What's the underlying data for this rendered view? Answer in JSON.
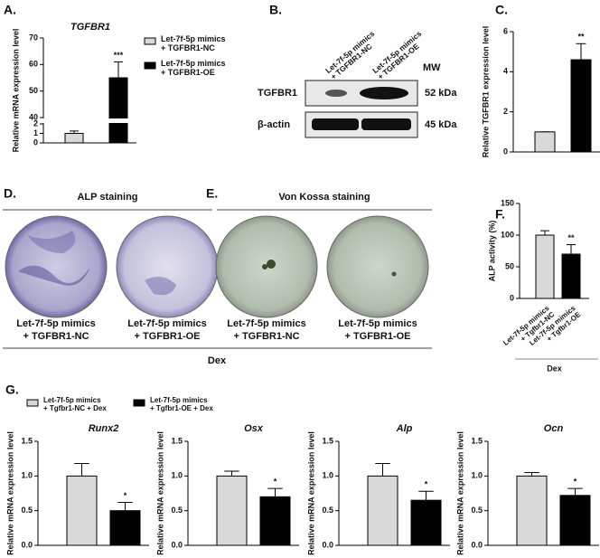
{
  "chart_data": [
    {
      "type": "bar",
      "panel_label": "A.",
      "title": "TGFBR1",
      "ylabel": "Relative mRNA expression level",
      "values": [
        1,
        55
      ],
      "errors": [
        0.25,
        6
      ],
      "colors": [
        "#d9d9d9",
        "#000000"
      ],
      "ylim": [
        0,
        70
      ],
      "yticks": [
        0,
        1,
        2,
        40,
        50,
        60,
        70
      ],
      "axis_break": [
        2,
        40
      ],
      "annotations": [
        {
          "bar": 1,
          "text": "***"
        }
      ],
      "legend": [
        {
          "lines": [
            "Let-7f-5p mimics",
            "+ TGFBR1-NC"
          ],
          "color": "#d9d9d9"
        },
        {
          "lines": [
            "Let-7f-5p mimics",
            "+ TGFBR1-OE"
          ],
          "color": "#000000"
        }
      ]
    },
    {
      "type": "bar",
      "panel_label": "C.",
      "ylabel": "Relative TGFBR1 expression level",
      "values": [
        1,
        4.6
      ],
      "errors": [
        0,
        0.8
      ],
      "colors": [
        "#d9d9d9",
        "#000000"
      ],
      "ylim": [
        0,
        6
      ],
      "yticks": [
        0,
        2,
        4,
        6
      ],
      "annotations": [
        {
          "bar": 1,
          "text": "**"
        }
      ]
    },
    {
      "type": "bar",
      "panel_label": "F.",
      "ylabel": "ALP activity (%)",
      "categories": [
        [
          "Let-7f-5p mimics",
          "+ Tgfbr1-NC"
        ],
        [
          "Let-7f-5p mimics",
          "+ Tgfbr1-OE"
        ]
      ],
      "group_label": "Dex",
      "values": [
        100,
        70
      ],
      "errors": [
        7,
        15
      ],
      "colors": [
        "#d9d9d9",
        "#000000"
      ],
      "ylim": [
        0,
        150
      ],
      "yticks": [
        0,
        50,
        100,
        150
      ],
      "annotations": [
        {
          "bar": 1,
          "text": "**"
        }
      ]
    },
    {
      "type": "bar",
      "title": "Runx2",
      "ylabel": "Relative mRNA expression level",
      "values": [
        1.0,
        0.5
      ],
      "errors": [
        0.18,
        0.12
      ],
      "colors": [
        "#d9d9d9",
        "#000000"
      ],
      "ylim": [
        0,
        1.5
      ],
      "yticks": [
        {
          "value": 0,
          "label": "0.0"
        },
        {
          "value": 0.5,
          "label": "0.5"
        },
        {
          "value": 1,
          "label": "1.0"
        },
        {
          "value": 1.5,
          "label": "1.5"
        }
      ],
      "annotations": [
        {
          "bar": 1,
          "text": "*"
        }
      ]
    },
    {
      "type": "bar",
      "title": "Osx",
      "ylabel": "Relative mRNA expression level",
      "values": [
        1.0,
        0.7
      ],
      "errors": [
        0.07,
        0.12
      ],
      "colors": [
        "#d9d9d9",
        "#000000"
      ],
      "ylim": [
        0,
        1.5
      ],
      "yticks": [
        {
          "value": 0,
          "label": "0.0"
        },
        {
          "value": 0.5,
          "label": "0.5"
        },
        {
          "value": 1,
          "label": "1.0"
        },
        {
          "value": 1.5,
          "label": "1.5"
        }
      ],
      "annotations": [
        {
          "bar": 1,
          "text": "*"
        }
      ]
    },
    {
      "type": "bar",
      "title": "Alp",
      "ylabel": "Relative mRNA expression level",
      "values": [
        1.0,
        0.65
      ],
      "errors": [
        0.18,
        0.13
      ],
      "colors": [
        "#d9d9d9",
        "#000000"
      ],
      "ylim": [
        0,
        1.5
      ],
      "yticks": [
        {
          "value": 0,
          "label": "0.0"
        },
        {
          "value": 0.5,
          "label": "0.5"
        },
        {
          "value": 1,
          "label": "1.0"
        },
        {
          "value": 1.5,
          "label": "1.5"
        }
      ],
      "annotations": [
        {
          "bar": 1,
          "text": "*"
        }
      ]
    },
    {
      "type": "bar",
      "title": "Ocn",
      "ylabel": "Relative mRNA expression level",
      "values": [
        1.0,
        0.72
      ],
      "errors": [
        0.05,
        0.1
      ],
      "colors": [
        "#d9d9d9",
        "#000000"
      ],
      "ylim": [
        0,
        1.5
      ],
      "yticks": [
        {
          "value": 0,
          "label": "0.0"
        },
        {
          "value": 0.5,
          "label": "0.5"
        },
        {
          "value": 1,
          "label": "1.0"
        },
        {
          "value": 1.5,
          "label": "1.5"
        }
      ],
      "annotations": [
        {
          "bar": 1,
          "text": "*"
        }
      ]
    }
  ],
  "panel_g": {
    "panel_label": "G.",
    "legend": [
      {
        "lines": [
          "Let-7f-5p mimics",
          "+ Tgfbr1-NC + Dex"
        ],
        "color": "#d9d9d9"
      },
      {
        "lines": [
          "Let-7f-5p mimics",
          "+ Tgfbr1-OE + Dex"
        ],
        "color": "#000000"
      }
    ]
  },
  "blot": {
    "panel_label": "B.",
    "lanes": [
      [
        "Let-7f-5p mimics",
        "+ TGFBR1-NC"
      ],
      [
        "Let-7f-5p mimics",
        "+ TGFBR1-OE"
      ]
    ],
    "mw_header": "MW",
    "rows": [
      {
        "protein": "TGFBR1",
        "mw": "52 kDa"
      },
      {
        "protein": "β-actin",
        "mw": "45 kDa"
      }
    ]
  },
  "staining": {
    "panels": [
      {
        "panel_label": "D.",
        "title": "ALP staining",
        "wells": [
          [
            "Let-7f-5p mimics",
            "+ TGFBR1-NC"
          ],
          [
            "Let-7f-5p mimics",
            "+ TGFBR1-OE"
          ]
        ]
      },
      {
        "panel_label": "E.",
        "title": "Von Kossa staining",
        "wells": [
          [
            "Let-7f-5p mimics",
            "+ TGFBR1-NC"
          ],
          [
            "Let-7f-5p mimics",
            "+ TGFBR1-OE"
          ]
        ]
      }
    ],
    "group": "Dex"
  }
}
